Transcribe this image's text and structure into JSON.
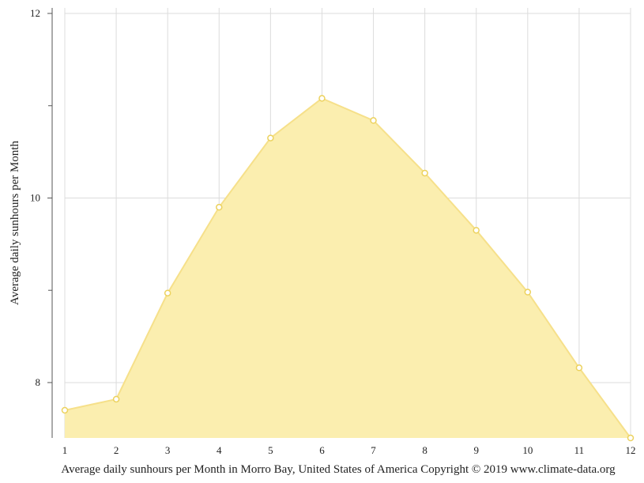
{
  "chart_data": {
    "type": "area",
    "title": "",
    "xlabel": "Average daily sunhours per Month in Morro Bay, United States of America Copyright © 2019 www.climate-data.org",
    "ylabel": "Average daily sunhours per Month",
    "x": [
      1,
      2,
      3,
      4,
      5,
      6,
      7,
      8,
      9,
      10,
      11,
      12
    ],
    "x_tick_labels": [
      "1",
      "2",
      "3",
      "4",
      "5",
      "6",
      "7",
      "8",
      "9",
      "10",
      "11",
      "12"
    ],
    "series": [
      {
        "values": [
          7.7,
          7.82,
          8.97,
          9.9,
          10.65,
          11.08,
          10.84,
          10.27,
          9.65,
          8.98,
          8.16,
          7.4
        ]
      }
    ],
    "xlim": [
      1,
      12
    ],
    "ylim": [
      7.4,
      12
    ],
    "y_ticks": [
      8,
      10,
      12
    ],
    "y_tick_labels": [
      "8",
      "10",
      "12"
    ],
    "y_minor_ticks": [
      9,
      11
    ],
    "grid": true,
    "colors": {
      "area_fill": "#fbeeaf",
      "area_line": "#f6e08a",
      "marker_stroke": "#ecd25e",
      "marker_fill": "#ffffff",
      "grid": "#dcdcdc",
      "axis": "#555555"
    }
  }
}
